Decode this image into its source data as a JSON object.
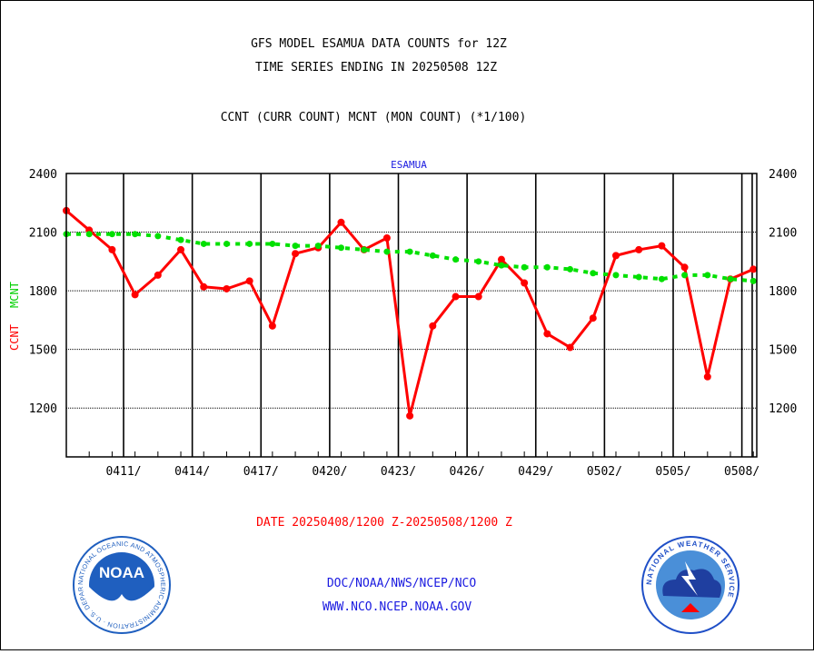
{
  "chart_data": {
    "type": "line",
    "title_lines": [
      "GFS MODEL ESAMUA DATA COUNTS for 12Z",
      "TIME SERIES ENDING IN 20250508 12Z",
      "CCNT (CURR COUNT) MCNT (MON COUNT) (*1/100)"
    ],
    "panel_label": "ESAMUA",
    "ylabel_ccnt": "CCNT",
    "ylabel_mcnt": "MCNT",
    "xlabel": "DATE 20250408/1200 Z-20250508/1200 Z",
    "ylim": [
      950,
      2400
    ],
    "yticks": [
      1200,
      1500,
      1800,
      2100,
      2400
    ],
    "xlim": [
      0,
      30.15
    ],
    "xtick_positions": [
      2.5,
      5.5,
      8.5,
      11.5,
      14.5,
      17.5,
      20.5,
      23.5,
      26.5,
      29.5
    ],
    "xtick_labels": [
      "0411/",
      "0414/",
      "0417/",
      "0420/",
      "0423/",
      "0426/",
      "0429/",
      "0502/",
      "0505/",
      "0508/"
    ],
    "extra_vline": 29.95,
    "grid": true,
    "series": [
      {
        "name": "CCNT",
        "color": "#ff0000",
        "x": [
          0,
          1,
          2,
          3,
          4,
          5,
          6,
          7,
          8,
          9,
          10,
          11,
          12,
          13,
          14,
          15,
          16,
          17,
          18,
          19,
          20,
          21,
          22,
          23,
          24,
          25,
          26,
          27,
          28,
          29,
          30
        ],
        "values": [
          2210,
          2110,
          2010,
          1780,
          1880,
          2010,
          1820,
          1810,
          1850,
          1620,
          1990,
          2020,
          2150,
          2010,
          2070,
          1160,
          1620,
          1770,
          1770,
          1960,
          1840,
          1580,
          1510,
          1660,
          1980,
          2010,
          2030,
          1920,
          1360,
          1860,
          1910
        ]
      },
      {
        "name": "MCNT",
        "color": "#00e000",
        "x": [
          0,
          1,
          2,
          3,
          4,
          5,
          6,
          7,
          8,
          9,
          10,
          11,
          12,
          13,
          14,
          15,
          16,
          17,
          18,
          19,
          20,
          21,
          22,
          23,
          24,
          25,
          26,
          27,
          28,
          29,
          30
        ],
        "values": [
          2090,
          2090,
          2090,
          2090,
          2080,
          2060,
          2040,
          2040,
          2040,
          2040,
          2030,
          2030,
          2020,
          2010,
          2000,
          2000,
          1980,
          1960,
          1950,
          1930,
          1920,
          1920,
          1910,
          1890,
          1880,
          1870,
          1860,
          1880,
          1880,
          1860,
          1850
        ]
      }
    ]
  },
  "footer": {
    "noaa_logo_text": "NOAA",
    "noaa_ring_text": "NATIONAL OCEANIC AND ATMOSPHERIC ADMINISTRATION · U.S. DEPARTMENT OF COMMERCE ·",
    "nws_ring_text": "NATIONAL WEATHER SERVICE",
    "line1": "DOC/NOAA/NWS/NCEP/NCO",
    "line2": "WWW.NCO.NCEP.NOAA.GOV",
    "colors": {
      "text": "#1a1ae0",
      "noaa_blue": "#1f5fbf",
      "nws_blue": "#1f4fc7"
    }
  }
}
